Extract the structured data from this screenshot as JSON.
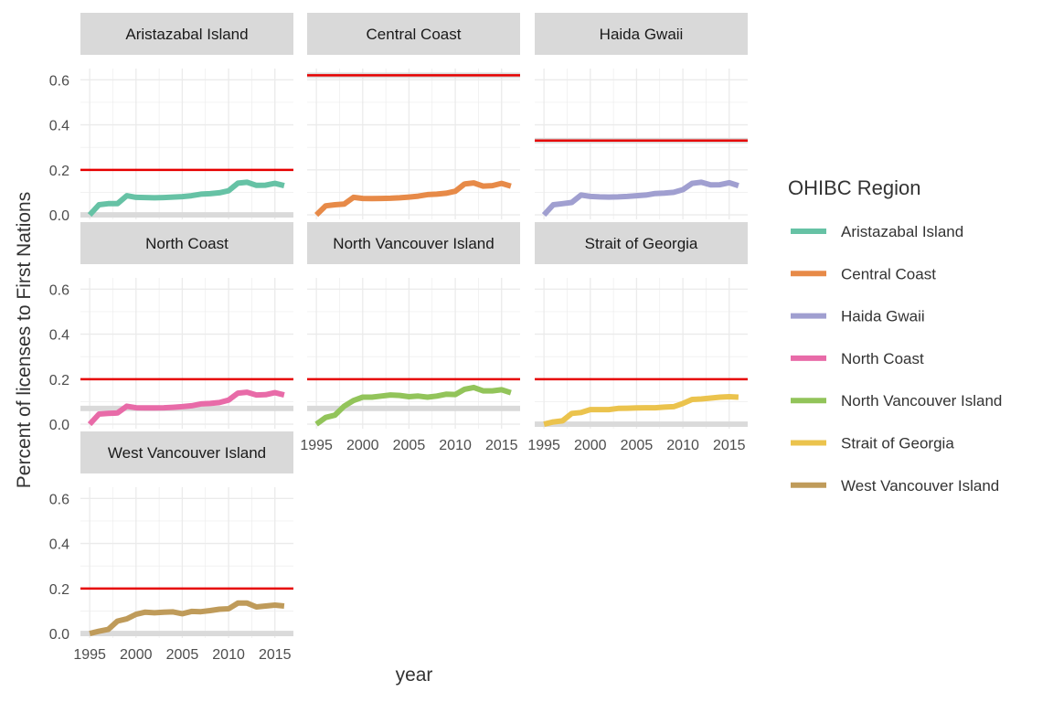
{
  "chart_data": {
    "type": "line",
    "layout": "faceted",
    "xlabel": "year",
    "ylabel": "Percent of licenses to First Nations",
    "xlim": [
      1994,
      2017
    ],
    "ylim": [
      -0.02,
      0.65
    ],
    "x_ticks": [
      1995,
      2000,
      2005,
      2010,
      2015
    ],
    "y_ticks": [
      0.0,
      0.2,
      0.4,
      0.6
    ],
    "y_tick_labels": [
      "0.0",
      "0.2",
      "0.4",
      "0.6"
    ],
    "grid": true,
    "legend": {
      "title": "OHIBC Region",
      "position": "right"
    },
    "x": [
      1995,
      1996,
      1997,
      1998,
      1999,
      2000,
      2001,
      2002,
      2003,
      2004,
      2005,
      2006,
      2007,
      2008,
      2009,
      2010,
      2011,
      2012,
      2013,
      2014,
      2015,
      2016
    ],
    "facets": [
      {
        "name": "Aristazabal Island",
        "color": "#66c2a5",
        "values": [
          0.0,
          0.045,
          0.05,
          0.05,
          0.085,
          0.078,
          0.077,
          0.076,
          0.077,
          0.079,
          0.081,
          0.085,
          0.092,
          0.094,
          0.098,
          0.107,
          0.141,
          0.145,
          0.131,
          0.132,
          0.14,
          0.13
        ],
        "target": 0.2,
        "band": 0.0
      },
      {
        "name": "Central Coast",
        "color": "#e78a48",
        "values": [
          0.0,
          0.04,
          0.045,
          0.048,
          0.078,
          0.073,
          0.072,
          0.073,
          0.074,
          0.076,
          0.079,
          0.083,
          0.09,
          0.092,
          0.096,
          0.105,
          0.137,
          0.142,
          0.128,
          0.13,
          0.14,
          0.128
        ],
        "target": 0.62,
        "band": 0.62
      },
      {
        "name": "Haida Gwaii",
        "color": "#a09fd0",
        "values": [
          0.0,
          0.045,
          0.05,
          0.055,
          0.088,
          0.082,
          0.08,
          0.079,
          0.08,
          0.082,
          0.085,
          0.088,
          0.095,
          0.097,
          0.1,
          0.112,
          0.14,
          0.145,
          0.133,
          0.134,
          0.143,
          0.13
        ],
        "target": 0.33,
        "band": 0.33
      },
      {
        "name": "North Coast",
        "color": "#e86ba8",
        "values": [
          0.0,
          0.045,
          0.048,
          0.05,
          0.08,
          0.073,
          0.072,
          0.072,
          0.073,
          0.075,
          0.078,
          0.082,
          0.09,
          0.092,
          0.096,
          0.107,
          0.138,
          0.142,
          0.13,
          0.131,
          0.14,
          0.13
        ],
        "target": 0.2,
        "band": 0.07
      },
      {
        "name": "North Vancouver Island",
        "color": "#92c45a",
        "values": [
          0.0,
          0.03,
          0.04,
          0.08,
          0.105,
          0.12,
          0.12,
          0.125,
          0.13,
          0.128,
          0.122,
          0.125,
          0.12,
          0.125,
          0.133,
          0.132,
          0.155,
          0.163,
          0.148,
          0.148,
          0.153,
          0.14
        ],
        "target": 0.2,
        "band": 0.07
      },
      {
        "name": "Strait of Georgia",
        "color": "#ebc34d",
        "values": [
          0.0,
          0.01,
          0.015,
          0.048,
          0.052,
          0.065,
          0.065,
          0.065,
          0.07,
          0.071,
          0.072,
          0.073,
          0.073,
          0.076,
          0.078,
          0.092,
          0.11,
          0.112,
          0.116,
          0.12,
          0.122,
          0.12
        ],
        "target": 0.2,
        "band": 0.0
      },
      {
        "name": "West Vancouver Island",
        "color": "#bf9b5a",
        "values": [
          0.0,
          0.01,
          0.018,
          0.055,
          0.065,
          0.085,
          0.095,
          0.092,
          0.095,
          0.096,
          0.088,
          0.098,
          0.097,
          0.102,
          0.108,
          0.11,
          0.135,
          0.135,
          0.118,
          0.122,
          0.126,
          0.122
        ],
        "target": 0.2,
        "band": 0.0
      }
    ]
  },
  "style": {
    "target_line_color": "#e60000",
    "band_color": "#dadada",
    "strip_color": "#d9d9d9",
    "grid_color": "#ebebeb"
  }
}
